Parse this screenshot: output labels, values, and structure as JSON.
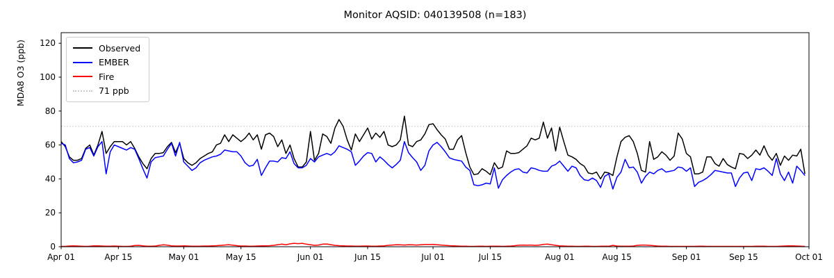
{
  "figure": {
    "title": "Monitor AQSID: 040139508 (n=183)",
    "ylabel": "MDA8 O3 (ppb)",
    "background": "#ffffff",
    "axes_color": "#000000"
  },
  "legend": {
    "position": "upper left",
    "items": [
      {
        "label": "Observed",
        "color": "#000000",
        "style": "solid"
      },
      {
        "label": "EMBER",
        "color": "#0000ff",
        "style": "solid"
      },
      {
        "label": "Fire",
        "color": "#ff0000",
        "style": "solid"
      },
      {
        "label": "71 ppb",
        "color": "#c9c9c9",
        "style": "dotted"
      }
    ]
  },
  "chart_data": {
    "type": "line",
    "title": "Monitor AQSID: 040139508 (n=183)",
    "xlabel": "",
    "ylabel": "MDA8 O3 (ppb)",
    "n_points": 183,
    "x_unit": "daily values from Apr 01 to Sep 30",
    "x_start": "Apr 01",
    "x_end": "Sep 30",
    "xlim_days": [
      0,
      183
    ],
    "ylim": [
      0,
      126
    ],
    "grid": false,
    "y_ticks": [
      0,
      20,
      40,
      60,
      80,
      100,
      120
    ],
    "x_ticks": [
      {
        "day": 0,
        "label": "Apr 01"
      },
      {
        "day": 14,
        "label": "Apr 15"
      },
      {
        "day": 30,
        "label": "May 01"
      },
      {
        "day": 44,
        "label": "May 15"
      },
      {
        "day": 61,
        "label": "Jun 01"
      },
      {
        "day": 75,
        "label": "Jun 15"
      },
      {
        "day": 91,
        "label": "Jul 01"
      },
      {
        "day": 105,
        "label": "Jul 15"
      },
      {
        "day": 122,
        "label": "Aug 01"
      },
      {
        "day": 136,
        "label": "Aug 15"
      },
      {
        "day": 153,
        "label": "Sep 01"
      },
      {
        "day": 167,
        "label": "Sep 15"
      },
      {
        "day": 183,
        "label": "Oct 01"
      }
    ],
    "threshold": {
      "value": 71,
      "label": "71 ppb",
      "color": "#c9c9c9",
      "line_style": "dotted"
    },
    "series": [
      {
        "name": "Observed",
        "color": "#000000",
        "values": [
          62,
          59,
          53,
          51,
          51,
          52,
          58,
          60,
          54,
          60,
          68,
          55,
          59,
          62,
          62,
          62,
          60,
          62,
          58,
          53,
          49,
          46,
          52,
          55,
          55,
          55.5,
          59,
          61.5,
          55.5,
          61,
          52,
          49.5,
          48,
          49.5,
          52,
          53.5,
          55,
          56,
          60,
          61,
          66,
          62,
          66,
          64,
          62,
          64,
          67,
          63,
          66,
          57.5,
          66,
          67,
          65,
          59,
          63,
          55,
          60,
          52,
          47,
          47,
          50,
          68,
          51,
          55,
          66.5,
          65,
          61,
          70,
          75,
          71,
          63,
          57,
          66.5,
          62,
          66,
          70,
          63.5,
          67,
          64.5,
          68,
          60,
          59,
          60,
          63,
          77,
          60,
          59,
          62,
          63,
          66.5,
          72,
          72.5,
          69,
          66,
          63.5,
          57.5,
          57.5,
          63,
          65.5,
          55.5,
          47,
          42.5,
          43,
          46,
          44.5,
          42.5,
          49.5,
          46,
          47,
          56.5,
          55,
          55,
          55.5,
          57.5,
          59.5,
          64,
          63,
          64,
          73.5,
          64,
          70,
          56.5,
          70.5,
          62,
          54,
          53,
          51.5,
          49,
          47.5,
          43.5,
          43,
          44,
          40,
          44,
          43.5,
          42,
          53,
          62,
          64.5,
          65.5,
          62,
          55,
          45,
          44,
          62,
          51.5,
          53,
          56,
          54,
          51,
          53.5,
          67,
          63.5,
          55,
          53,
          43,
          43,
          44,
          53,
          53,
          49,
          47.5,
          52,
          48.5,
          47,
          46,
          55,
          54.5,
          52,
          54,
          57,
          54,
          59.5,
          54,
          51,
          55,
          48,
          53.5,
          51,
          54,
          53.5,
          57.5,
          43
        ]
      },
      {
        "name": "EMBER",
        "color": "#0000ff",
        "values": [
          61,
          60,
          52,
          49.5,
          50,
          51,
          57.5,
          58.5,
          53.5,
          59,
          62,
          43,
          56,
          60,
          59,
          58,
          57,
          58.5,
          57.5,
          52,
          46,
          40.5,
          50,
          52.5,
          53,
          53.5,
          57.5,
          61,
          53.5,
          61.5,
          50,
          47.5,
          45,
          46.5,
          49.5,
          51,
          52,
          53,
          53.5,
          54.5,
          57,
          56.5,
          56,
          56,
          53.5,
          49.5,
          47.5,
          48,
          51.5,
          42,
          46.5,
          50.5,
          50.5,
          50,
          52.5,
          52,
          56,
          49,
          46.5,
          46.5,
          48,
          52,
          50,
          53,
          54,
          55,
          54,
          56,
          59.5,
          58.5,
          57.5,
          56,
          48,
          50.5,
          53.5,
          55.5,
          55,
          50,
          53,
          51,
          48.5,
          46.5,
          48.5,
          51,
          62,
          55.5,
          52.5,
          50,
          45,
          48,
          56.5,
          60,
          61.5,
          59,
          56,
          52.5,
          51.5,
          51,
          50.5,
          47,
          45,
          36.5,
          36,
          36.5,
          37.5,
          37,
          46.5,
          34.5,
          39.5,
          42,
          44,
          45.5,
          46,
          44,
          43.5,
          46.5,
          46,
          45,
          44.5,
          44.5,
          47.5,
          48.5,
          50.5,
          47.5,
          44.5,
          47.5,
          46.5,
          42,
          39.5,
          39,
          40.5,
          39,
          35,
          41.5,
          43,
          34,
          41,
          44,
          51.5,
          46.5,
          47,
          44,
          37.5,
          41.5,
          44,
          43,
          45,
          46,
          44,
          44.5,
          45,
          47,
          46.5,
          44.5,
          46.5,
          35.5,
          38,
          39,
          40.5,
          42.5,
          45,
          44.5,
          44,
          43.5,
          43.5,
          35.5,
          40.5,
          43.5,
          44,
          39,
          46,
          45.5,
          46.5,
          44.5,
          42,
          52,
          43,
          39,
          44,
          37.5,
          47.5,
          45,
          42
        ]
      },
      {
        "name": "Fire",
        "color": "#ff0000",
        "values": [
          0.2,
          0.2,
          0.4,
          0.5,
          0.4,
          0.3,
          0.2,
          0.3,
          0.5,
          0.5,
          0.4,
          0.3,
          0.3,
          0.4,
          0.3,
          0.2,
          0.2,
          0.3,
          0.7,
          0.8,
          0.5,
          0.3,
          0.3,
          0.4,
          0.8,
          1.1,
          0.9,
          0.5,
          0.4,
          0.4,
          0.5,
          0.4,
          0.3,
          0.3,
          0.3,
          0.4,
          0.4,
          0.5,
          0.6,
          0.8,
          1.0,
          1.2,
          0.9,
          0.6,
          0.4,
          0.4,
          0.3,
          0.3,
          0.4,
          0.5,
          0.5,
          0.6,
          0.8,
          1.2,
          1.5,
          1.2,
          1.7,
          2.0,
          1.8,
          2.0,
          1.5,
          1.2,
          0.8,
          1.0,
          1.5,
          1.6,
          1.2,
          0.8,
          0.6,
          0.5,
          0.4,
          0.4,
          0.3,
          0.3,
          0.4,
          0.4,
          0.3,
          0.3,
          0.4,
          0.5,
          0.8,
          1.0,
          1.2,
          1.1,
          1.0,
          1.2,
          1.1,
          1.0,
          1.2,
          1.3,
          1.3,
          1.4,
          1.2,
          1.0,
          0.8,
          0.6,
          0.5,
          0.4,
          0.3,
          0.3,
          0.2,
          0.2,
          0.3,
          0.3,
          0.2,
          0.3,
          0.3,
          0.3,
          0.2,
          0.3,
          0.4,
          0.6,
          0.9,
          1.0,
          0.9,
          1.0,
          0.8,
          1.0,
          1.4,
          1.5,
          1.2,
          0.8,
          0.5,
          0.4,
          0.3,
          0.3,
          0.2,
          0.2,
          0.3,
          0.3,
          0.2,
          0.2,
          0.3,
          0.3,
          0.3,
          0.8,
          0.4,
          0.3,
          0.3,
          0.3,
          0.4,
          0.8,
          1.0,
          1.0,
          0.8,
          0.6,
          0.4,
          0.3,
          0.3,
          0.2,
          0.2,
          0.2,
          0.2,
          0.2,
          0.2,
          0.2,
          0.3,
          0.3,
          0.2,
          0.2,
          0.2,
          0.2,
          0.2,
          0.2,
          0.2,
          0.2,
          0.2,
          0.2,
          0.2,
          0.2,
          0.3,
          0.3,
          0.3,
          0.2,
          0.2,
          0.2,
          0.3,
          0.4,
          0.5,
          0.5,
          0.4,
          0.3,
          0.2
        ]
      }
    ]
  }
}
